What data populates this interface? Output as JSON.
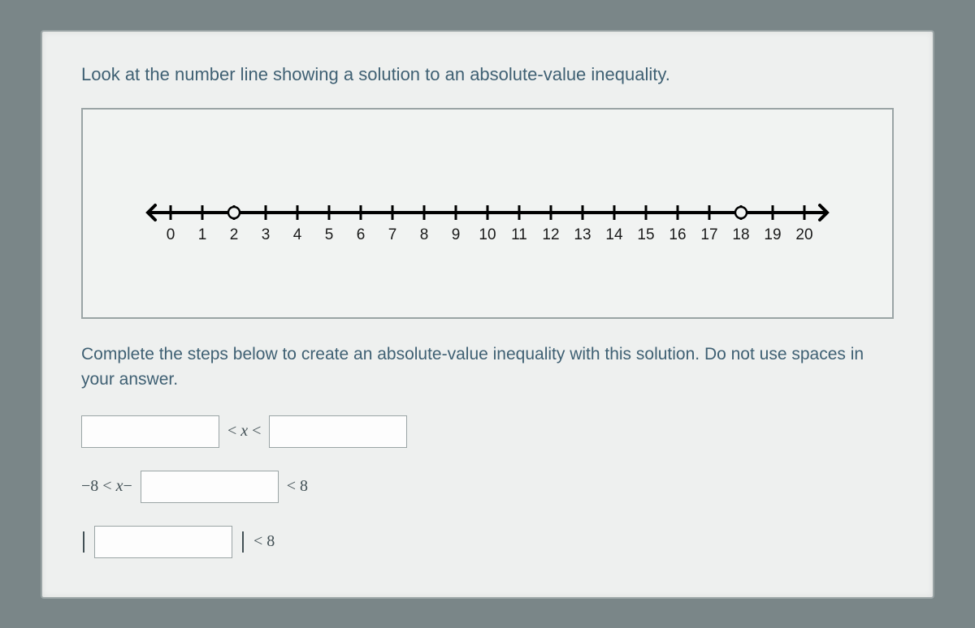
{
  "prompt": "Look at the number line showing a solution to an absolute-value inequality.",
  "instruction": "Complete the steps below to create an absolute-value inequality with this solution. Do not use spaces in your answer.",
  "numberline": {
    "min": 0,
    "max": 20,
    "tick_labels": [
      "0",
      "1",
      "2",
      "3",
      "4",
      "5",
      "6",
      "7",
      "8",
      "9",
      "10",
      "11",
      "12",
      "13",
      "14",
      "15",
      "16",
      "17",
      "18",
      "19",
      "20"
    ],
    "open_points": [
      2,
      18
    ],
    "line_color": "#000000",
    "tick_color": "#000000",
    "label_color": "#1a1a1a",
    "point_fill": "#f1f3f2",
    "point_stroke": "#000000",
    "background": "#f1f3f2",
    "label_fontsize": 19,
    "tick_height": 18,
    "line_width": 4,
    "point_radius": 7
  },
  "rows": {
    "row1": {
      "mid_text": "< x <"
    },
    "row2": {
      "left_text": "−8 < x−",
      "right_text": "< 8"
    },
    "row3": {
      "right_text": "< 8"
    }
  },
  "colors": {
    "page_bg": "#eef0ef",
    "outer_bg": "#7a8688",
    "border": "#9aa4a5",
    "text_teal": "#3f6073",
    "math_text": "#425055"
  }
}
